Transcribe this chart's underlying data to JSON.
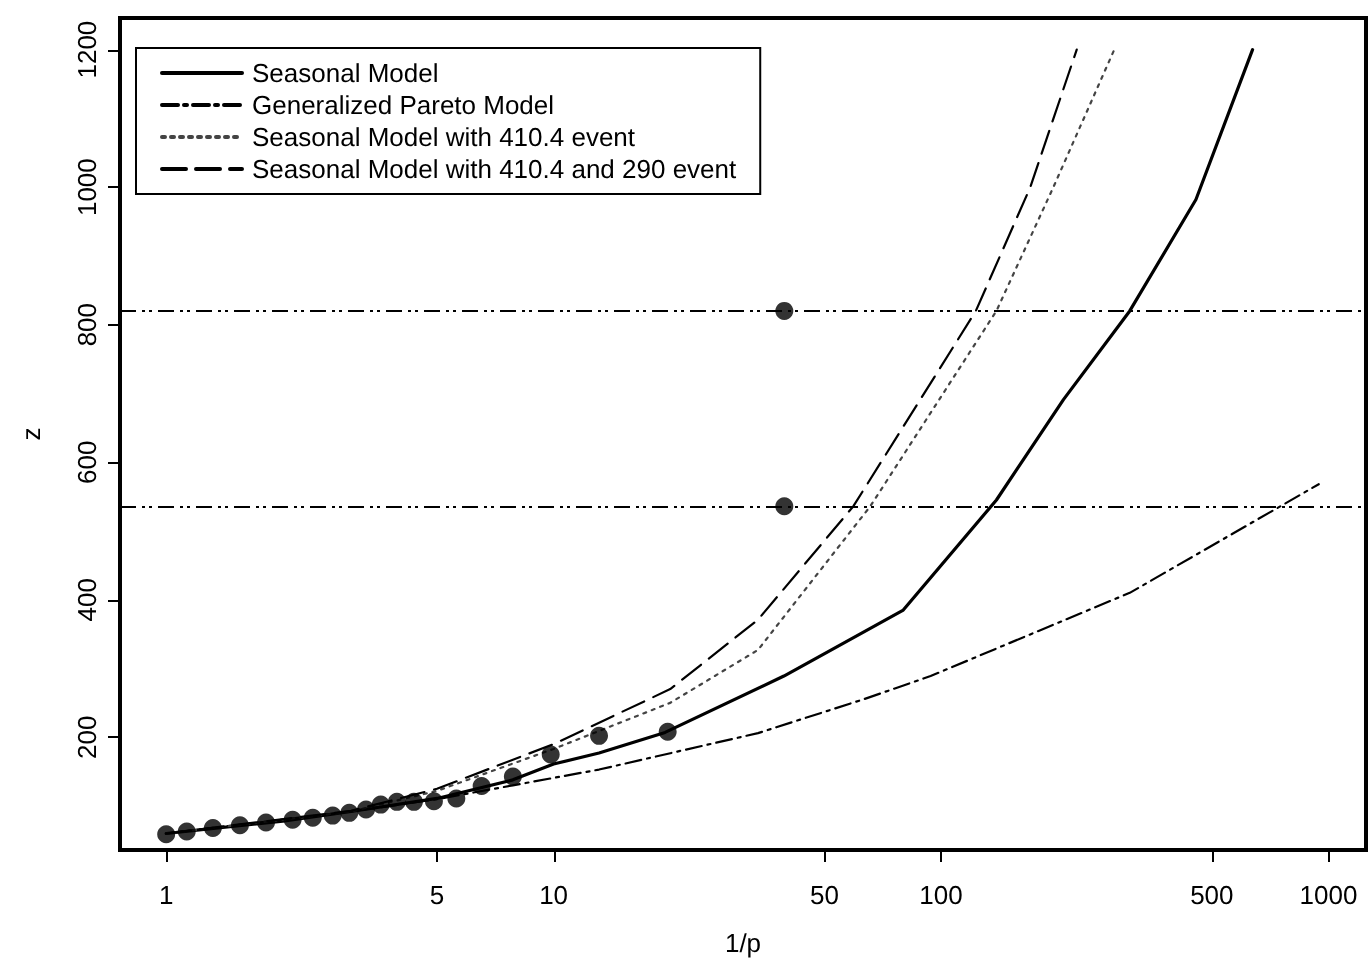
{
  "chart_data": {
    "type": "line",
    "xlabel": "1/p",
    "ylabel": "z",
    "xlim": [
      0.76,
      1250
    ],
    "ylim": [
      36,
      1246
    ],
    "log": "x",
    "xticks": [
      1,
      5,
      10,
      50,
      100,
      500,
      1000
    ],
    "yticks": [
      200,
      400,
      600,
      800,
      1000,
      1200
    ],
    "grid": false,
    "legend": "top left",
    "marker": "none",
    "series": [
      {
        "name": "Seasonal Model",
        "color": "#000000",
        "line_style": "solid",
        "x": [
          1,
          2,
          3,
          5,
          7.85,
          10,
          13.1,
          19.4,
          39.3,
          79.9,
          139,
          207,
          307,
          455,
          637
        ],
        "values": [
          60,
          78,
          92,
          111,
          138,
          161,
          177,
          207,
          289,
          385,
          545,
          691,
          820,
          982,
          1200
        ]
      },
      {
        "name": "Generalized Pareto Model",
        "color": "#000000",
        "line_style": "dashdot",
        "x": [
          1,
          3,
          5,
          7.85,
          13.1,
          33.7,
          63,
          94,
          307,
          944
        ],
        "values": [
          60,
          92,
          110,
          130,
          153,
          206,
          255,
          289,
          410,
          568
        ]
      },
      {
        "name": "Seasonal Model with 410.4 event",
        "color": "#444444",
        "line_style": "dotted",
        "x": [
          1,
          3,
          5,
          10,
          20,
          33.7,
          65.7,
          139,
          195,
          280
        ],
        "values": [
          60,
          92,
          122,
          183,
          250,
          327,
          536,
          820,
          1000,
          1200
        ]
      },
      {
        "name": "Seasonal Model with 410.4 and 290 event",
        "color": "#000000",
        "line_style": "dashed",
        "x": [
          1,
          3,
          5,
          10,
          20,
          33.7,
          59.4,
          123,
          170,
          224
        ],
        "values": [
          60,
          93,
          125,
          190,
          270,
          371,
          536,
          820,
          1000,
          1200
        ]
      },
      {
        "type": "scatter",
        "marker": "circle",
        "color": "#000000",
        "x": [
          1,
          1.13,
          1.32,
          1.55,
          1.81,
          2.12,
          2.39,
          2.69,
          2.97,
          3.28,
          3.58,
          3.94,
          4.36,
          4.91,
          5.61,
          6.52,
          7.85,
          9.83,
          13.1,
          19.7,
          39.4,
          39.4
        ],
        "values": [
          59,
          63,
          68,
          72,
          76,
          80,
          83,
          86,
          90,
          95,
          102,
          106,
          106,
          107,
          111,
          129,
          143,
          175,
          202,
          208,
          820,
          536
        ]
      }
    ],
    "ref_lines": [
      {
        "axis": "y",
        "value": 820,
        "color": "#000000"
      },
      {
        "axis": "y",
        "value": 536,
        "color": "#000000"
      }
    ]
  }
}
